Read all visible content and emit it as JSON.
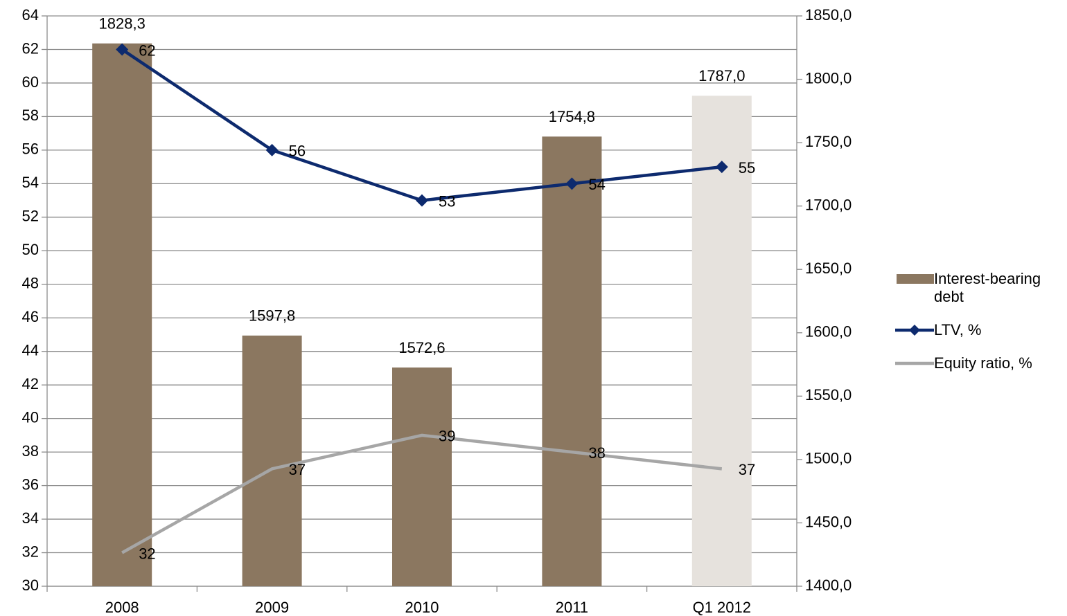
{
  "chart_data": {
    "type": "combo",
    "categories": [
      "2008",
      "2009",
      "2010",
      "2011",
      "Q1 2012"
    ],
    "series": [
      {
        "name": "Interest-bearing debt",
        "type": "bar",
        "axis": "y2",
        "color": "#8b7760",
        "colors": [
          "#8b7760",
          "#8b7760",
          "#8b7760",
          "#8b7760",
          "#e6e2dd"
        ],
        "values": [
          1828.3,
          1597.8,
          1572.6,
          1754.8,
          1787.0
        ],
        "value_labels": [
          "1828,3",
          "1597,8",
          "1572,6",
          "1754,8",
          "1787,0"
        ]
      },
      {
        "name": "LTV, %",
        "type": "line",
        "marker": "diamond",
        "color": "#0d2a6e",
        "values": [
          62,
          56,
          53,
          54,
          55
        ]
      },
      {
        "name": "Equity ratio, %",
        "type": "line",
        "color": "#a6a6a6",
        "values": [
          32,
          37,
          39,
          38,
          37
        ]
      }
    ],
    "ylim": [
      30,
      64
    ],
    "yticks": [
      30,
      32,
      34,
      36,
      38,
      40,
      42,
      44,
      46,
      48,
      50,
      52,
      54,
      56,
      58,
      60,
      62,
      64
    ],
    "y2lim": [
      1400,
      1850
    ],
    "y2ticks": [
      {
        "value": 1400,
        "label": "1400,0"
      },
      {
        "value": 1450,
        "label": "1450,0"
      },
      {
        "value": 1500,
        "label": "1500,0"
      },
      {
        "value": 1550,
        "label": "1550,0"
      },
      {
        "value": 1600,
        "label": "1600,0"
      },
      {
        "value": 1650,
        "label": "1650,0"
      },
      {
        "value": 1700,
        "label": "1700,0"
      },
      {
        "value": 1750,
        "label": "1750,0"
      },
      {
        "value": 1800,
        "label": "1800,0"
      },
      {
        "value": 1850,
        "label": "1850,0"
      }
    ],
    "grid": true,
    "legend": "right"
  }
}
